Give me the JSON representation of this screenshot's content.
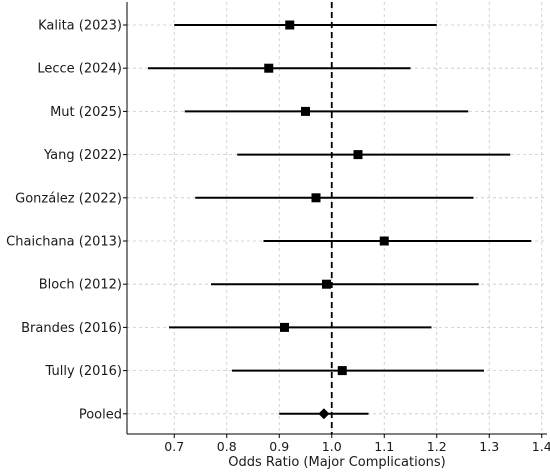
{
  "chart_data": {
    "type": "forest",
    "title": "",
    "xlabel": "Odds Ratio (Major Complications)",
    "ylabel": "",
    "xlim": [
      0.61,
      1.41
    ],
    "xticks": [
      0.7,
      0.8,
      0.9,
      1.0,
      1.1,
      1.2,
      1.3,
      1.4
    ],
    "xtick_labels": [
      "0.7",
      "0.8",
      "0.9",
      "1.0",
      "1.1",
      "1.2",
      "1.3",
      "1.4"
    ],
    "reference_line": 1.0,
    "grid": true,
    "studies": [
      {
        "label": "Kalita (2023)",
        "or": 0.92,
        "ci_low": 0.7,
        "ci_high": 1.2,
        "marker": "square"
      },
      {
        "label": "Lecce (2024)",
        "or": 0.88,
        "ci_low": 0.65,
        "ci_high": 1.15,
        "marker": "square"
      },
      {
        "label": "Mut (2025)",
        "or": 0.95,
        "ci_low": 0.72,
        "ci_high": 1.26,
        "marker": "square"
      },
      {
        "label": "Yang (2022)",
        "or": 1.05,
        "ci_low": 0.82,
        "ci_high": 1.34,
        "marker": "square"
      },
      {
        "label": "González (2022)",
        "or": 0.97,
        "ci_low": 0.74,
        "ci_high": 1.27,
        "marker": "square"
      },
      {
        "label": "Chaichana (2013)",
        "or": 1.1,
        "ci_low": 0.87,
        "ci_high": 1.38,
        "marker": "square"
      },
      {
        "label": "Bloch (2012)",
        "or": 0.99,
        "ci_low": 0.77,
        "ci_high": 1.28,
        "marker": "square"
      },
      {
        "label": "Brandes (2016)",
        "or": 0.91,
        "ci_low": 0.69,
        "ci_high": 1.19,
        "marker": "square"
      },
      {
        "label": "Tully (2016)",
        "or": 1.02,
        "ci_low": 0.81,
        "ci_high": 1.29,
        "marker": "square"
      },
      {
        "label": "Pooled",
        "or": 0.985,
        "ci_low": 0.9,
        "ci_high": 1.07,
        "marker": "diamond"
      }
    ],
    "colors": {
      "marks": "#000000",
      "grid": "#c8c8c8",
      "axis": "#000000"
    }
  }
}
